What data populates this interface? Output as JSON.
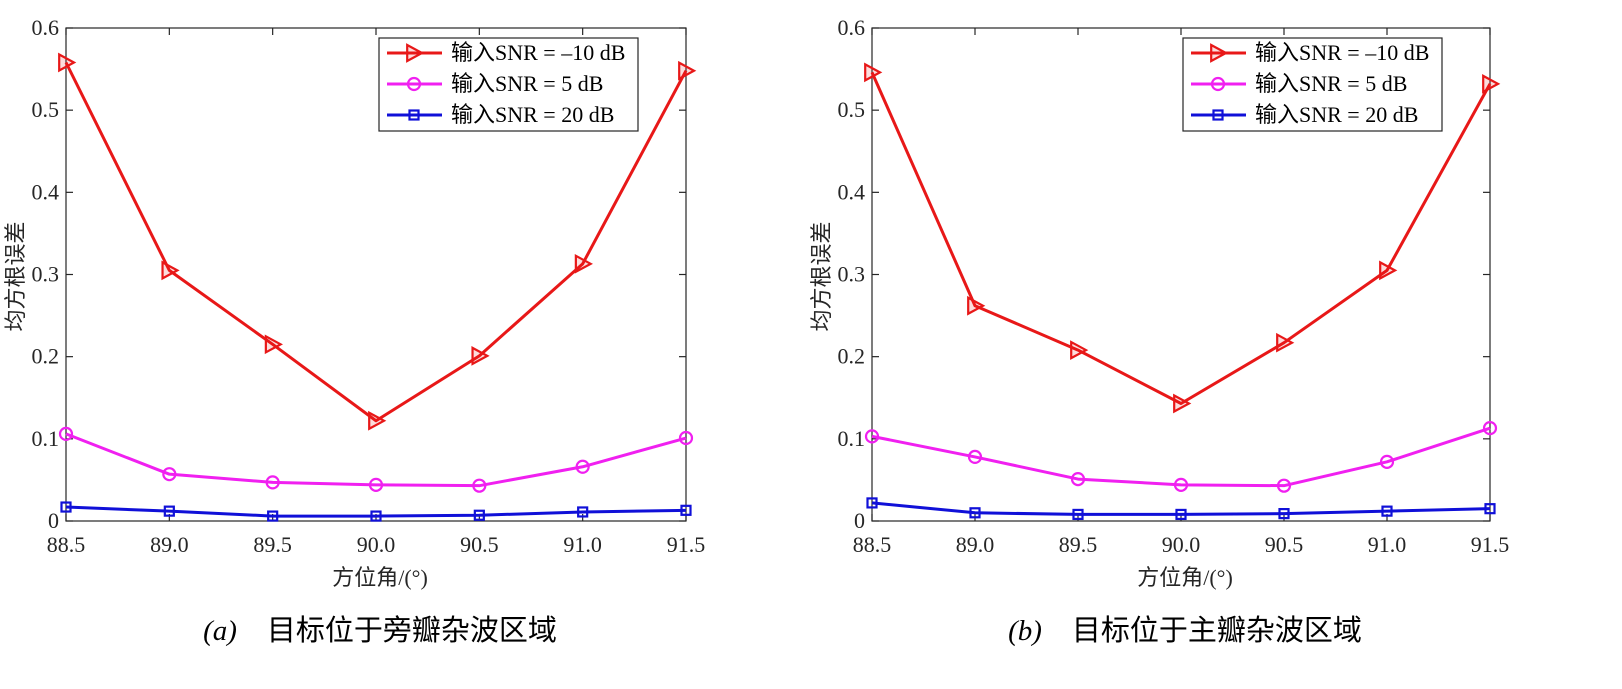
{
  "page": {
    "background": "#ffffff"
  },
  "chart_data": [
    {
      "type": "line",
      "caption_label": "(a)",
      "caption": "目标位于旁瓣杂波区域",
      "xlabel": "方位角/(°)",
      "ylabel": "均方根误差",
      "x": [
        88.5,
        89.0,
        89.5,
        90.0,
        90.5,
        91.0,
        91.5
      ],
      "xlim": [
        88.5,
        91.5
      ],
      "ylim": [
        0,
        0.6
      ],
      "xticks": [
        "88.5",
        "89.0",
        "89.5",
        "90.0",
        "90.5",
        "91.0",
        "91.5"
      ],
      "yticks": [
        "0",
        "0.1",
        "0.2",
        "0.3",
        "0.4",
        "0.5",
        "0.6"
      ],
      "grid": false,
      "legend": {
        "placement": "top-right"
      },
      "series": [
        {
          "name": "输入SNR = –10 dB",
          "color": "#e81818",
          "marker": "triangle-right",
          "values": [
            0.558,
            0.305,
            0.215,
            0.122,
            0.201,
            0.313,
            0.548
          ]
        },
        {
          "name": "输入SNR = 5 dB",
          "color": "#f020f0",
          "marker": "circle",
          "values": [
            0.106,
            0.057,
            0.047,
            0.044,
            0.043,
            0.066,
            0.101
          ]
        },
        {
          "name": "输入SNR = 20 dB",
          "color": "#1010d8",
          "marker": "square",
          "values": [
            0.017,
            0.012,
            0.006,
            0.006,
            0.007,
            0.011,
            0.013
          ]
        }
      ]
    },
    {
      "type": "line",
      "caption_label": "(b)",
      "caption": "目标位于主瓣杂波区域",
      "xlabel": "方位角/(°)",
      "ylabel": "均方根误差",
      "x": [
        88.5,
        89.0,
        89.5,
        90.0,
        90.5,
        91.0,
        91.5
      ],
      "xlim": [
        88.5,
        91.5
      ],
      "ylim": [
        0,
        0.6
      ],
      "xticks": [
        "88.5",
        "89.0",
        "89.5",
        "90.0",
        "90.5",
        "91.0",
        "91.5"
      ],
      "yticks": [
        "0",
        "0.1",
        "0.2",
        "0.3",
        "0.4",
        "0.5",
        "0.6"
      ],
      "grid": false,
      "legend": {
        "placement": "top-right"
      },
      "series": [
        {
          "name": "输入SNR = –10 dB",
          "color": "#e81818",
          "marker": "triangle-right",
          "values": [
            0.546,
            0.262,
            0.208,
            0.143,
            0.217,
            0.305,
            0.532
          ]
        },
        {
          "name": "输入SNR = 5 dB",
          "color": "#f020f0",
          "marker": "circle",
          "values": [
            0.103,
            0.078,
            0.051,
            0.044,
            0.043,
            0.072,
            0.113
          ]
        },
        {
          "name": "输入SNR = 20 dB",
          "color": "#1010d8",
          "marker": "square",
          "values": [
            0.022,
            0.01,
            0.008,
            0.008,
            0.009,
            0.012,
            0.015
          ]
        }
      ]
    }
  ]
}
